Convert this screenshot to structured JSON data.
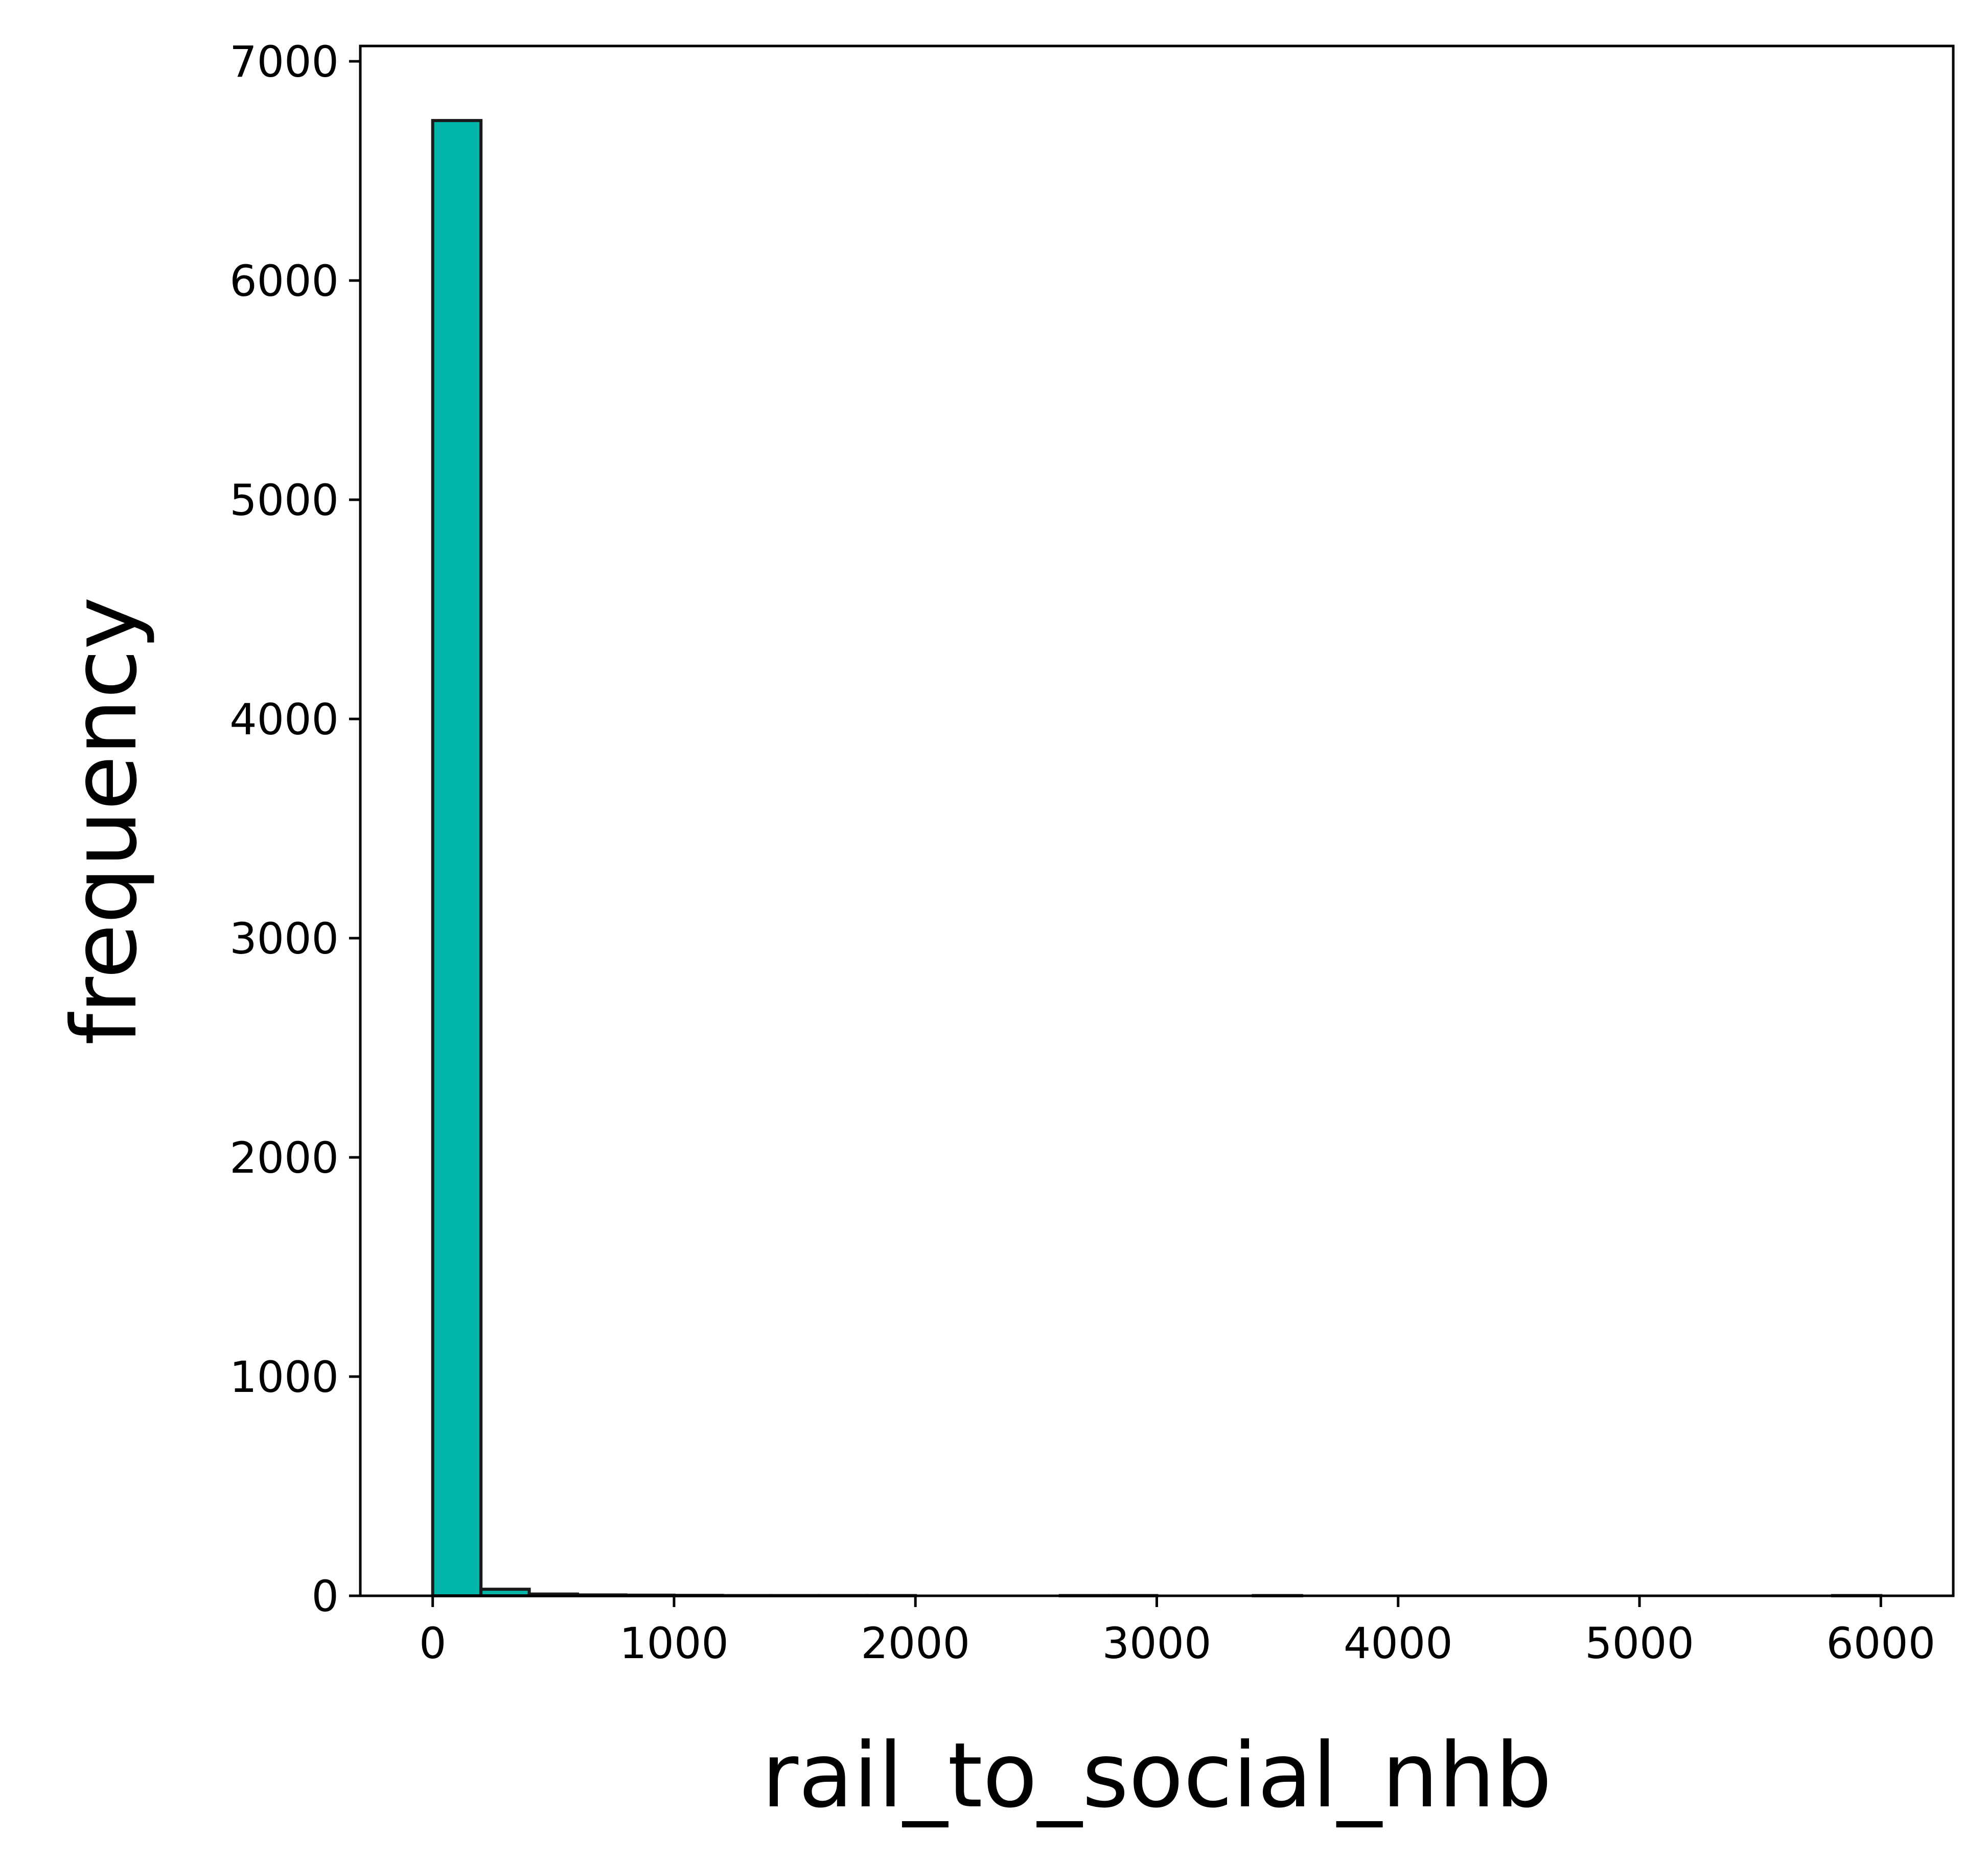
{
  "chart_data": {
    "type": "bar",
    "subtype": "histogram",
    "title": "",
    "xlabel": "rail_to_social_nhb",
    "ylabel": "frequency",
    "xlim": [
      -300,
      6300
    ],
    "ylim": [
      0,
      7070
    ],
    "xticks": [
      0,
      1000,
      2000,
      3000,
      4000,
      5000,
      6000
    ],
    "yticks": [
      0,
      1000,
      2000,
      3000,
      4000,
      5000,
      6000,
      7000
    ],
    "bin_edges": [
      0,
      200,
      400,
      600,
      800,
      1000,
      1200,
      1400,
      1600,
      1800,
      2000,
      2200,
      2400,
      2600,
      2800,
      3000,
      3200,
      3400,
      3600,
      3800,
      4000,
      4200,
      4400,
      4600,
      4800,
      5000,
      5200,
      5400,
      5600,
      5800,
      6000
    ],
    "values": [
      6730,
      30,
      8,
      4,
      3,
      2,
      1,
      1,
      1,
      1,
      0,
      0,
      0,
      1,
      1,
      0,
      0,
      1,
      0,
      0,
      0,
      0,
      0,
      0,
      0,
      0,
      0,
      0,
      0,
      1
    ],
    "grid": false,
    "legend": "none",
    "bar_color": "#00b5a7",
    "edge_color": "#1a1a1a"
  }
}
